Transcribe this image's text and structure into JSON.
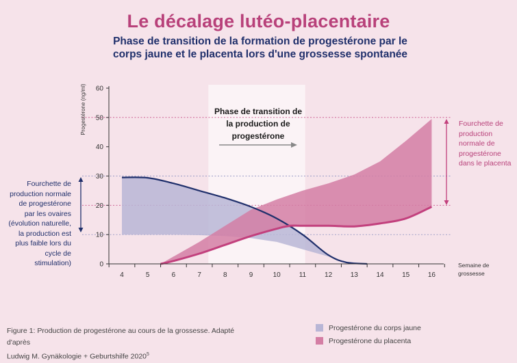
{
  "title": "Le décalage lutéo-placentaire",
  "subtitle_line1": "Phase de transition de la formation de progestérone par le",
  "subtitle_line2": "corps jaune et le placenta lors d'une grossesse spontanée",
  "left_annotation": "Fourchette de production normale de progestérone par les ovaires (évolution naturelle, la production est plus faible lors du cycle de stimulation)",
  "right_annotation": "Fourchette de production normale de progestérone dans le placenta",
  "caption_line1": "Figure 1: Production de progestérone au cours de la grossesse. Adapté d'après",
  "caption_line2": "Ludwig M. Gynäkologie + Geburtshilfe 2020",
  "caption_superscript": "5",
  "colors": {
    "background": "#f6e3ea",
    "title": "#b8417a",
    "navy": "#1f2f6b",
    "corps_jaune_fill": "#b8b6d6",
    "placenta_fill": "#d47ea4",
    "placenta_line": "#c2407d",
    "transition_band": "#fbf3f6"
  },
  "chart_data": {
    "type": "area",
    "xlabel": "Semaine de grossesse",
    "ylabel": "Progestérone (ng/ml)",
    "xlim": [
      3.5,
      16.5
    ],
    "ylim": [
      0,
      60
    ],
    "x_ticks": [
      4,
      5,
      6,
      7,
      8,
      9,
      10,
      11,
      12,
      13,
      14,
      15,
      16
    ],
    "y_ticks": [
      0,
      10,
      20,
      30,
      40,
      50,
      60
    ],
    "reference_lines": [
      50,
      30,
      20,
      10
    ],
    "transition_phase": {
      "x_range": [
        7.35,
        11.1
      ],
      "label_line1": "Phase de transition de",
      "label_line2": "la production de",
      "label_line3": "progestérone"
    },
    "series": [
      {
        "name": "Progestérone du corps jaune",
        "band_upper": [
          [
            4,
            29.5
          ],
          [
            5,
            29.4
          ],
          [
            6,
            27.5
          ],
          [
            7,
            25
          ],
          [
            8,
            22.5
          ],
          [
            9,
            19.5
          ],
          [
            10,
            15.5
          ],
          [
            11,
            10
          ],
          [
            12,
            3
          ],
          [
            12.7,
            0.5
          ],
          [
            13.5,
            0
          ]
        ],
        "band_lower": [
          [
            4,
            10
          ],
          [
            5,
            10
          ],
          [
            6,
            10
          ],
          [
            7,
            9.8
          ],
          [
            8,
            9.5
          ],
          [
            9,
            8.8
          ],
          [
            10,
            7.5
          ],
          [
            11,
            5
          ],
          [
            12,
            2.5
          ],
          [
            12.7,
            0.8
          ],
          [
            13.5,
            0
          ]
        ],
        "line": [
          [
            4,
            29.5
          ],
          [
            5,
            29.4
          ],
          [
            6,
            27.5
          ],
          [
            7,
            25
          ],
          [
            8,
            22.5
          ],
          [
            9,
            19.5
          ],
          [
            10,
            15.5
          ],
          [
            11,
            10
          ],
          [
            12,
            3
          ],
          [
            12.7,
            0.5
          ],
          [
            13.5,
            0
          ]
        ]
      },
      {
        "name": "Progestérone du placenta",
        "band_upper": [
          [
            5.5,
            0
          ],
          [
            6,
            2.5
          ],
          [
            7,
            7.5
          ],
          [
            8,
            13
          ],
          [
            9,
            18.5
          ],
          [
            10,
            22
          ],
          [
            11,
            25
          ],
          [
            12,
            27.5
          ],
          [
            13,
            30.5
          ],
          [
            14,
            35
          ],
          [
            15,
            42
          ],
          [
            16,
            49.5
          ]
        ],
        "band_lower": [
          [
            5.5,
            0
          ],
          [
            6,
            1
          ],
          [
            7,
            3.5
          ],
          [
            8,
            6.5
          ],
          [
            9,
            9.5
          ],
          [
            10,
            12
          ],
          [
            11,
            13
          ],
          [
            12,
            13
          ],
          [
            13,
            12.8
          ],
          [
            14,
            13.8
          ],
          [
            15,
            15.5
          ],
          [
            16,
            19.5
          ]
        ],
        "line": [
          [
            5.5,
            0
          ],
          [
            6,
            1
          ],
          [
            7,
            3.5
          ],
          [
            8,
            6.5
          ],
          [
            9,
            9.5
          ],
          [
            10,
            12
          ],
          [
            10.5,
            13
          ],
          [
            11,
            13
          ],
          [
            12,
            13
          ],
          [
            13,
            12.8
          ],
          [
            14,
            13.8
          ],
          [
            15,
            15.5
          ],
          [
            16,
            19.5
          ]
        ]
      }
    ]
  }
}
